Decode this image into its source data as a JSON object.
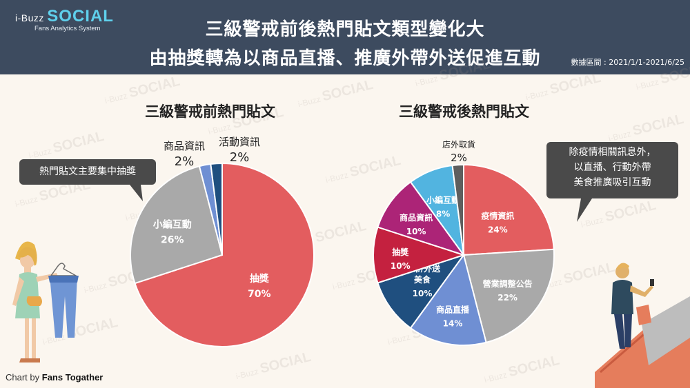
{
  "header": {
    "logo_prefix": "i-Buzz",
    "logo_main": "SOCIAL",
    "logo_sub": "Fans Analytics System",
    "title_line1": "三級警戒前後熱門貼文類型變化大",
    "title_line2": "由抽獎轉為以商品直播、推廣外帶外送促進互動",
    "date_range": "數據區間 : 2021/1/1-2021/6/25"
  },
  "watermark": {
    "prefix": "i-Buzz",
    "main": "SOCIAL"
  },
  "callouts": {
    "left": "熱門貼文主要集中抽獎",
    "right_line1": "除疫情相關訊息外，",
    "right_line2": "以直播、行動外帶",
    "right_line3": "美食推廣吸引互動"
  },
  "credit": {
    "prefix": "Chart by",
    "name": "Fans Togather"
  },
  "chart_data": [
    {
      "type": "pie",
      "title": "三級警戒前熱門貼文",
      "slices": [
        {
          "label": "抽獎",
          "value": 70,
          "display": "70%",
          "color": "#e35d5f"
        },
        {
          "label": "小編互動",
          "value": 26,
          "display": "26%",
          "color": "#a9a9a9"
        },
        {
          "label": "商品資訊",
          "value": 2,
          "display": "2%",
          "color": "#6f8fd3"
        },
        {
          "label": "活動資訊",
          "value": 2,
          "display": "2%",
          "color": "#1f4f7f"
        }
      ]
    },
    {
      "type": "pie",
      "title": "三級警戒後熱門貼文",
      "slices": [
        {
          "label": "疫情資訊",
          "value": 24,
          "display": "24%",
          "color": "#e35d5f"
        },
        {
          "label": "營業調整公告",
          "value": 22,
          "display": "22%",
          "color": "#a9a9a9"
        },
        {
          "label": "商品直播",
          "value": 14,
          "display": "14%",
          "color": "#6f8fd3"
        },
        {
          "label": "外帶/外送美食",
          "value": 10,
          "display": "10%",
          "color": "#1f4f7f"
        },
        {
          "label": "抽獎",
          "value": 10,
          "display": "10%",
          "color": "#c4213f"
        },
        {
          "label": "商品資訊",
          "value": 10,
          "display": "10%",
          "color": "#ac2477"
        },
        {
          "label": "小編互動",
          "value": 8,
          "display": "8%",
          "color": "#52b4e0"
        },
        {
          "label": "店外取貨",
          "value": 2,
          "display": "2%",
          "color": "#5e5e5e"
        }
      ]
    }
  ]
}
